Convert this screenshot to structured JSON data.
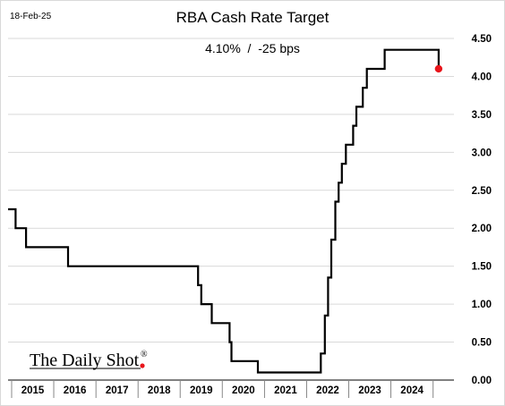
{
  "chart_data": {
    "type": "line",
    "title": "RBA Cash Rate Target",
    "subtitle": "4.10%  /  -25 bps",
    "date_label": "18-Feb-25",
    "xlabel": "",
    "ylabel": "",
    "x_ticks": [
      "2015",
      "2016",
      "2017",
      "2018",
      "2019",
      "2020",
      "2021",
      "2022",
      "2023",
      "2024"
    ],
    "y_ticks": [
      "0.00",
      "0.50",
      "1.00",
      "1.50",
      "2.00",
      "2.50",
      "3.00",
      "3.50",
      "4.00",
      "4.50"
    ],
    "ylim": [
      0,
      4.5
    ],
    "xlim": [
      "2014-12-01",
      "2025-07-01"
    ],
    "grid": true,
    "legend": "none",
    "series": [
      {
        "color": "#000000",
        "points": [
          {
            "x": "2014-12-01",
            "y": 2.25
          },
          {
            "x": "2015-02-04",
            "y": 2.0
          },
          {
            "x": "2015-05-06",
            "y": 1.75
          },
          {
            "x": "2016-05-04",
            "y": 1.75
          },
          {
            "x": "2016-05-04",
            "y": 1.5
          },
          {
            "x": "2016-08-03",
            "y": 1.5
          },
          {
            "x": "2019-06-05",
            "y": 1.25
          },
          {
            "x": "2019-07-03",
            "y": 1.0
          },
          {
            "x": "2019-10-02",
            "y": 0.75
          },
          {
            "x": "2020-03-04",
            "y": 0.5
          },
          {
            "x": "2020-03-20",
            "y": 0.25
          },
          {
            "x": "2020-11-04",
            "y": 0.1
          },
          {
            "x": "2022-05-04",
            "y": 0.35
          },
          {
            "x": "2022-06-08",
            "y": 0.85
          },
          {
            "x": "2022-07-06",
            "y": 1.35
          },
          {
            "x": "2022-08-03",
            "y": 1.85
          },
          {
            "x": "2022-09-07",
            "y": 2.35
          },
          {
            "x": "2022-10-05",
            "y": 2.6
          },
          {
            "x": "2022-11-02",
            "y": 2.85
          },
          {
            "x": "2022-12-07",
            "y": 3.1
          },
          {
            "x": "2023-02-08",
            "y": 3.35
          },
          {
            "x": "2023-03-08",
            "y": 3.6
          },
          {
            "x": "2023-05-03",
            "y": 3.85
          },
          {
            "x": "2023-06-07",
            "y": 4.1
          },
          {
            "x": "2023-11-08",
            "y": 4.35
          },
          {
            "x": "2025-02-18",
            "y": 4.1
          }
        ]
      }
    ],
    "last_point": {
      "x": "2025-02-18",
      "y": 4.1,
      "color": "#e8151b"
    }
  },
  "branding": {
    "logo_text": "The Daily Shot",
    "registered_mark": "®",
    "logo_dot_color": "#e8151b"
  }
}
